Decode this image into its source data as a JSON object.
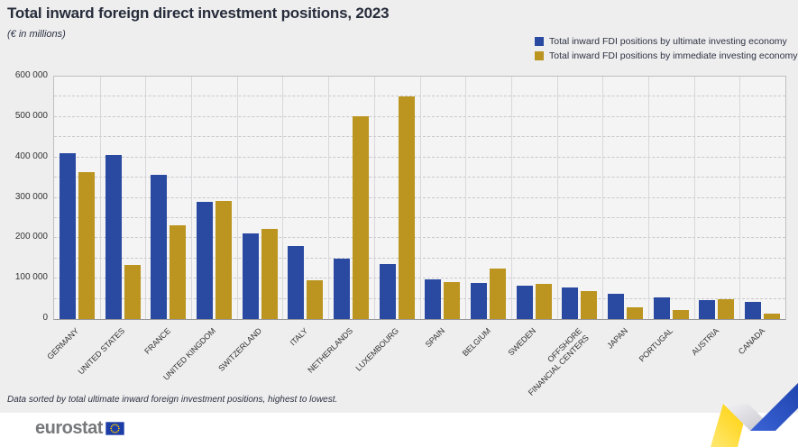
{
  "title": "Total inward foreign direct investment positions, 2023",
  "subtitle": "(€ in millions)",
  "footnote": "Data sorted by total ultimate inward foreign investment positions, highest to lowest.",
  "footer": {
    "logo_text": "eurostat"
  },
  "colors": {
    "ultimate_blue": "#2a4aa2",
    "immediate_gold": "#bb9520",
    "page_bg": "#eeeeef",
    "plot_bg": "#f4f4f5",
    "eu_flag_blue": "#1c3da6",
    "eu_star_yellow": "#ffcc00"
  },
  "chart_data": {
    "type": "bar",
    "title": "Total inward foreign direct investment positions, 2023",
    "subtitle": "(€ in millions)",
    "xlabel": "",
    "ylabel": "€ in millions",
    "ylim": [
      0,
      600000
    ],
    "ytick_step": 100000,
    "minor_step": 50000,
    "grid": "horizontal dashed every 50 000, vertical solid between categories",
    "legend_position": "top-right",
    "categories": [
      "GERMANY",
      "UNITED STATES",
      "FRANCE",
      "UNITED KINGDOM",
      "SWITZERLAND",
      "ITALY",
      "NETHERLANDS",
      "LUXEMBOURG",
      "SPAIN",
      "BELGIUM",
      "SWEDEN",
      "OFFSHORE\nFINANCIAL CENTERS",
      "JAPAN",
      "PORTUGAL",
      "AUSTRIA",
      "CANADA"
    ],
    "series": [
      {
        "name": "Total inward FDI positions by ultimate investing economy",
        "color": "#2a4aa2",
        "values": [
          411000,
          407000,
          357000,
          291000,
          211000,
          181000,
          149000,
          136000,
          99000,
          90000,
          82000,
          78000,
          62000,
          54000,
          46000,
          42000
        ]
      },
      {
        "name": "Total inward FDI positions by immediate investing economy",
        "color": "#bb9520",
        "values": [
          363000,
          133000,
          233000,
          292000,
          224000,
          97000,
          503000,
          552000,
          92000,
          126000,
          88000,
          70000,
          28000,
          22000,
          48000,
          13000
        ]
      }
    ]
  }
}
